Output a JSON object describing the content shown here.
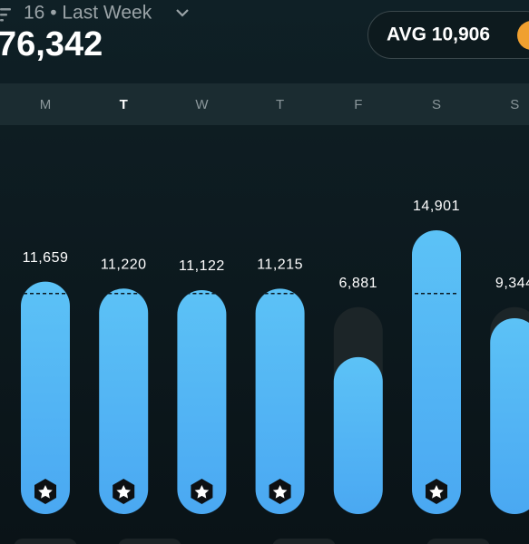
{
  "header": {
    "period": "16 • Last Week",
    "total": "76,342"
  },
  "chart_data": {
    "type": "bar",
    "categories": [
      "M",
      "T",
      "W",
      "T",
      "F",
      "S",
      "S"
    ],
    "values": [
      11659,
      11220,
      11122,
      11215,
      6881,
      14901,
      9344
    ],
    "value_labels": [
      "11,659",
      "11,220",
      "11,122",
      "11,215",
      "6,881",
      "14,901",
      "9,344"
    ],
    "average": {
      "value": 10906,
      "label": "AVG 10,906"
    },
    "color": "#5cc2f6"
  }
}
